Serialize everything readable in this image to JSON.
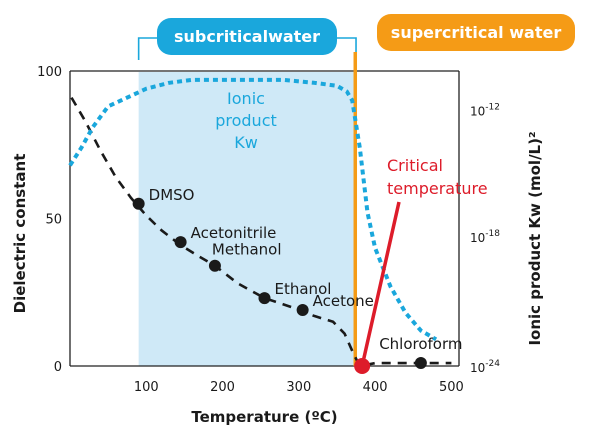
{
  "regions": {
    "subcritical_label": "subcriticalwater",
    "supercritical_label": "supercritical water",
    "subcritical_range": [
      90,
      375
    ],
    "critical_temperature_c": 374
  },
  "chart_data": {
    "type": "line",
    "xlabel": "Temperature (ºC)",
    "ylabel_left": "Dielectric constant",
    "ylabel_right": "Ionic product Kw (mol/L)²",
    "xlim": [
      0,
      510
    ],
    "ylim": [
      0,
      100
    ],
    "x_ticks": [
      100,
      200,
      300,
      400,
      500
    ],
    "y_ticks": [
      0,
      50,
      100
    ],
    "right_ticks": [
      {
        "label": "10",
        "exponent": "-12",
        "y": 87
      },
      {
        "label": "10",
        "exponent": "-18",
        "y": 44
      },
      {
        "label": "10",
        "exponent": "-24",
        "y": 0
      }
    ],
    "series": [
      {
        "key": "dielectric",
        "style": "dashed",
        "color": "#1a1a1a",
        "x": [
          2,
          20,
          40,
          60,
          80,
          100,
          120,
          145,
          170,
          190,
          220,
          255,
          290,
          320,
          345,
          360,
          372,
          380,
          400,
          430,
          460,
          500
        ],
        "y": [
          91,
          83,
          73,
          64,
          57,
          51,
          46,
          41,
          37,
          34,
          28,
          23,
          20,
          17,
          15,
          11,
          4,
          0,
          1,
          1,
          1,
          1
        ]
      },
      {
        "key": "ionic_product",
        "style": "dotted",
        "color": "#1aa7dc",
        "x": [
          0,
          15,
          30,
          50,
          75,
          100,
          130,
          160,
          200,
          240,
          280,
          320,
          350,
          363,
          370,
          375,
          380,
          390,
          400,
          420,
          440,
          460,
          480
        ],
        "y": [
          68,
          74,
          81,
          88,
          91,
          94,
          96,
          97,
          97,
          97,
          97,
          96,
          95,
          93,
          90,
          82,
          74,
          52,
          40,
          27,
          18,
          12,
          9
        ]
      }
    ],
    "points": [
      {
        "label": "DMSO",
        "x": 90,
        "y": 55
      },
      {
        "label": "Acetonitrile",
        "x": 145,
        "y": 42
      },
      {
        "label": "Methanol",
        "x": 190,
        "y": 34
      },
      {
        "label": "Ethanol",
        "x": 255,
        "y": 23
      },
      {
        "label": "Acetone",
        "x": 305,
        "y": 19
      },
      {
        "label": "Chloroform",
        "x": 460,
        "y": 1
      }
    ],
    "annotations": {
      "ionic_label": [
        "Ionic",
        "product",
        "Kw"
      ],
      "critical_label": [
        "Critical",
        "temperature"
      ],
      "critical_point": {
        "x": 383,
        "y": 0
      }
    },
    "colors": {
      "subcritical_fill": "#cfe9f7",
      "subcritical_accent": "#1aa7dc",
      "supercritical_accent": "#f59b16",
      "critical": "#dd1c2a",
      "points": "#1a1a1a"
    }
  }
}
